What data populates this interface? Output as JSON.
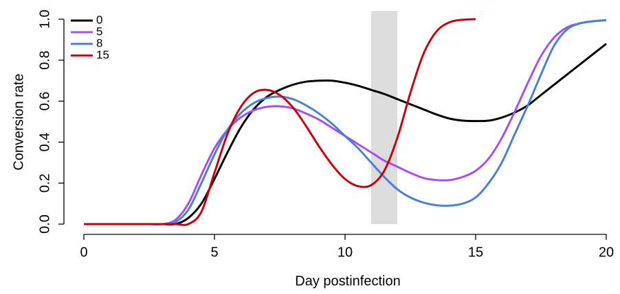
{
  "chart_data": {
    "type": "line",
    "xlabel": "Day postinfection",
    "ylabel": "Conversion rate",
    "x": [
      0,
      0.5,
      1,
      1.5,
      2,
      2.5,
      3,
      3.5,
      4,
      4.5,
      5,
      5.5,
      6,
      6.5,
      7,
      7.5,
      8,
      8.5,
      9,
      9.5,
      10,
      10.5,
      11,
      11.5,
      12,
      12.5,
      13,
      13.5,
      14,
      14.5,
      15,
      15.5,
      16,
      16.5,
      17,
      17.5,
      18,
      18.5,
      19,
      19.5,
      20
    ],
    "series": [
      {
        "name": "0",
        "color": "#000000",
        "values": [
          0,
          0,
          0,
          0,
          0,
          0,
          0,
          0,
          0.03,
          0.1,
          0.22,
          0.35,
          0.47,
          0.56,
          0.62,
          0.655,
          0.68,
          0.695,
          0.7,
          0.7,
          0.69,
          0.675,
          0.655,
          0.635,
          0.61,
          0.585,
          0.56,
          0.535,
          0.515,
          0.505,
          0.503,
          0.505,
          0.52,
          0.545,
          0.58,
          0.63,
          0.68,
          0.73,
          0.78,
          0.83,
          0.88
        ]
      },
      {
        "name": "5",
        "color": "#a64ff0",
        "values": [
          0,
          0,
          0,
          0,
          0,
          0,
          0,
          0.02,
          0.1,
          0.24,
          0.37,
          0.46,
          0.52,
          0.555,
          0.572,
          0.575,
          0.565,
          0.54,
          0.51,
          0.47,
          0.43,
          0.39,
          0.35,
          0.31,
          0.28,
          0.25,
          0.225,
          0.215,
          0.215,
          0.23,
          0.26,
          0.32,
          0.42,
          0.55,
          0.69,
          0.82,
          0.91,
          0.96,
          0.98,
          0.99,
          0.995
        ]
      },
      {
        "name": "8",
        "color": "#4a7fd6",
        "values": [
          0,
          0,
          0,
          0,
          0,
          0,
          0,
          0.01,
          0.07,
          0.2,
          0.34,
          0.46,
          0.54,
          0.59,
          0.615,
          0.622,
          0.61,
          0.58,
          0.54,
          0.49,
          0.43,
          0.37,
          0.3,
          0.23,
          0.17,
          0.13,
          0.105,
          0.092,
          0.09,
          0.1,
          0.13,
          0.2,
          0.3,
          0.44,
          0.58,
          0.73,
          0.87,
          0.95,
          0.98,
          0.99,
          0.995
        ]
      },
      {
        "name": "15",
        "color": "#c8000a",
        "values": [
          0,
          0,
          0,
          0,
          0,
          0,
          0,
          0,
          0,
          0.06,
          0.25,
          0.44,
          0.57,
          0.64,
          0.655,
          0.63,
          0.57,
          0.48,
          0.38,
          0.29,
          0.22,
          0.185,
          0.19,
          0.26,
          0.42,
          0.64,
          0.83,
          0.94,
          0.985,
          0.997,
          1.0,
          null,
          null,
          null,
          null,
          null,
          null,
          null,
          null,
          null,
          null
        ]
      }
    ],
    "highlight_x": [
      11,
      12
    ],
    "xlim": [
      0,
      20
    ],
    "xticks": [
      0,
      5,
      10,
      15,
      20
    ],
    "ylim": [
      0,
      1
    ],
    "yticks": [
      {
        "value": 0,
        "label": "0.0"
      },
      0.2,
      0.4,
      0.6,
      0.8,
      {
        "value": 1,
        "label": "1.0"
      }
    ],
    "legend": "top-left",
    "grid": false
  }
}
